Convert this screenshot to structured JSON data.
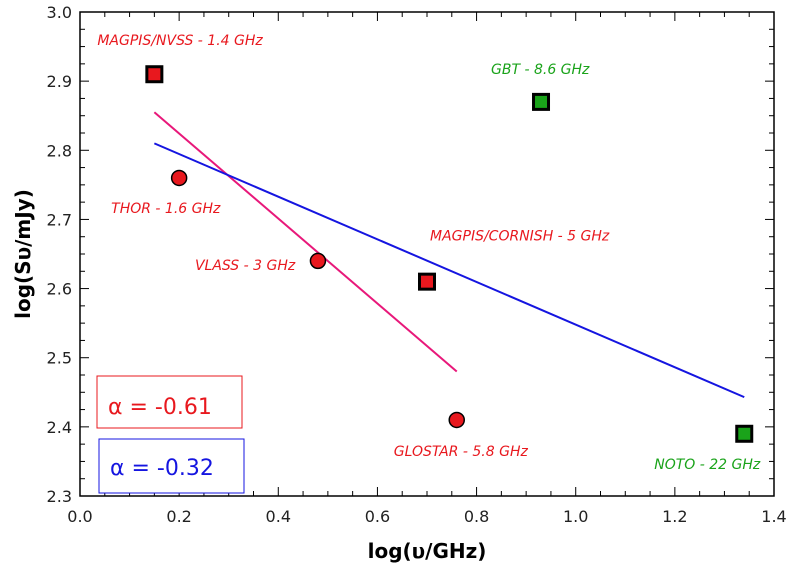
{
  "chart_data": {
    "type": "scatter",
    "xlabel": "log(υ/GHz)",
    "ylabel": "log(Sυ/mJy)",
    "xlim": [
      0.0,
      1.4
    ],
    "ylim": [
      2.3,
      3.0
    ],
    "xticks": [
      "0.0",
      "0.2",
      "0.4",
      "0.6",
      "0.8",
      "1.0",
      "1.2",
      "1.4"
    ],
    "yticks": [
      "2.3",
      "2.4",
      "2.5",
      "2.6",
      "2.7",
      "2.8",
      "2.9",
      "3.0"
    ],
    "points": [
      {
        "label": "MAGPIS/NVSS - 1.4 GHz",
        "x": 0.15,
        "y": 2.91,
        "marker": "square",
        "color": "#e8181e"
      },
      {
        "label": "THOR - 1.6 GHz",
        "x": 0.2,
        "y": 2.76,
        "marker": "circle",
        "color": "#e8181e"
      },
      {
        "label": "VLASS - 3 GHz",
        "x": 0.48,
        "y": 2.64,
        "marker": "circle",
        "color": "#e8181e"
      },
      {
        "label": "MAGPIS/CORNISH - 5 GHz",
        "x": 0.7,
        "y": 2.61,
        "marker": "square",
        "color": "#e8181e"
      },
      {
        "label": "GLOSTAR - 5.8 GHz",
        "x": 0.76,
        "y": 2.41,
        "marker": "circle",
        "color": "#e8181e"
      },
      {
        "label": "GBT - 8.6 GHz",
        "x": 0.93,
        "y": 2.87,
        "marker": "square",
        "color": "#1aa31a"
      },
      {
        "label": "NOTO - 22 GHz",
        "x": 1.34,
        "y": 2.39,
        "marker": "square",
        "color": "#1aa31a"
      }
    ],
    "fits": [
      {
        "name": "α = -0.61",
        "color": "#e8187a",
        "x": [
          0.15,
          0.76
        ],
        "y": [
          2.855,
          2.48
        ]
      },
      {
        "name": "α = -0.32",
        "color": "#1515e0",
        "x": [
          0.15,
          1.34
        ],
        "y": [
          2.81,
          2.443
        ]
      }
    ],
    "legend": [
      {
        "text": "α = -0.61",
        "color": "#e8181e"
      },
      {
        "text": "α = -0.32",
        "color": "#1515e0"
      }
    ]
  }
}
